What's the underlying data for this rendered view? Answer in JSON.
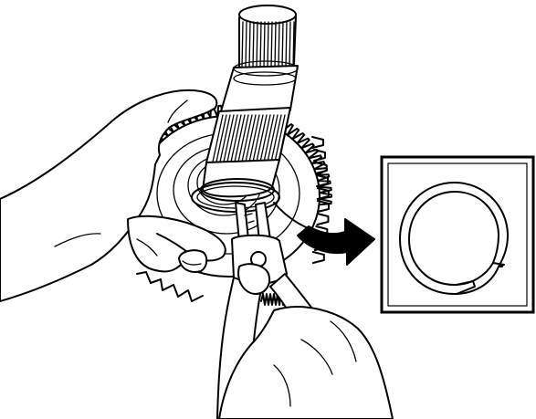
{
  "illustration": {
    "subject": "snap-ring-removal",
    "items": [
      {
        "name": "hand-left-icon"
      },
      {
        "name": "hand-right-icon"
      },
      {
        "name": "gear-icon"
      },
      {
        "name": "splined-shaft-icon"
      },
      {
        "name": "snap-ring-pliers-icon"
      },
      {
        "name": "callout-arrow-icon"
      },
      {
        "name": "snap-ring-detail-icon"
      }
    ],
    "colors": {
      "ink": "#000000",
      "paper": "#ffffff"
    }
  }
}
